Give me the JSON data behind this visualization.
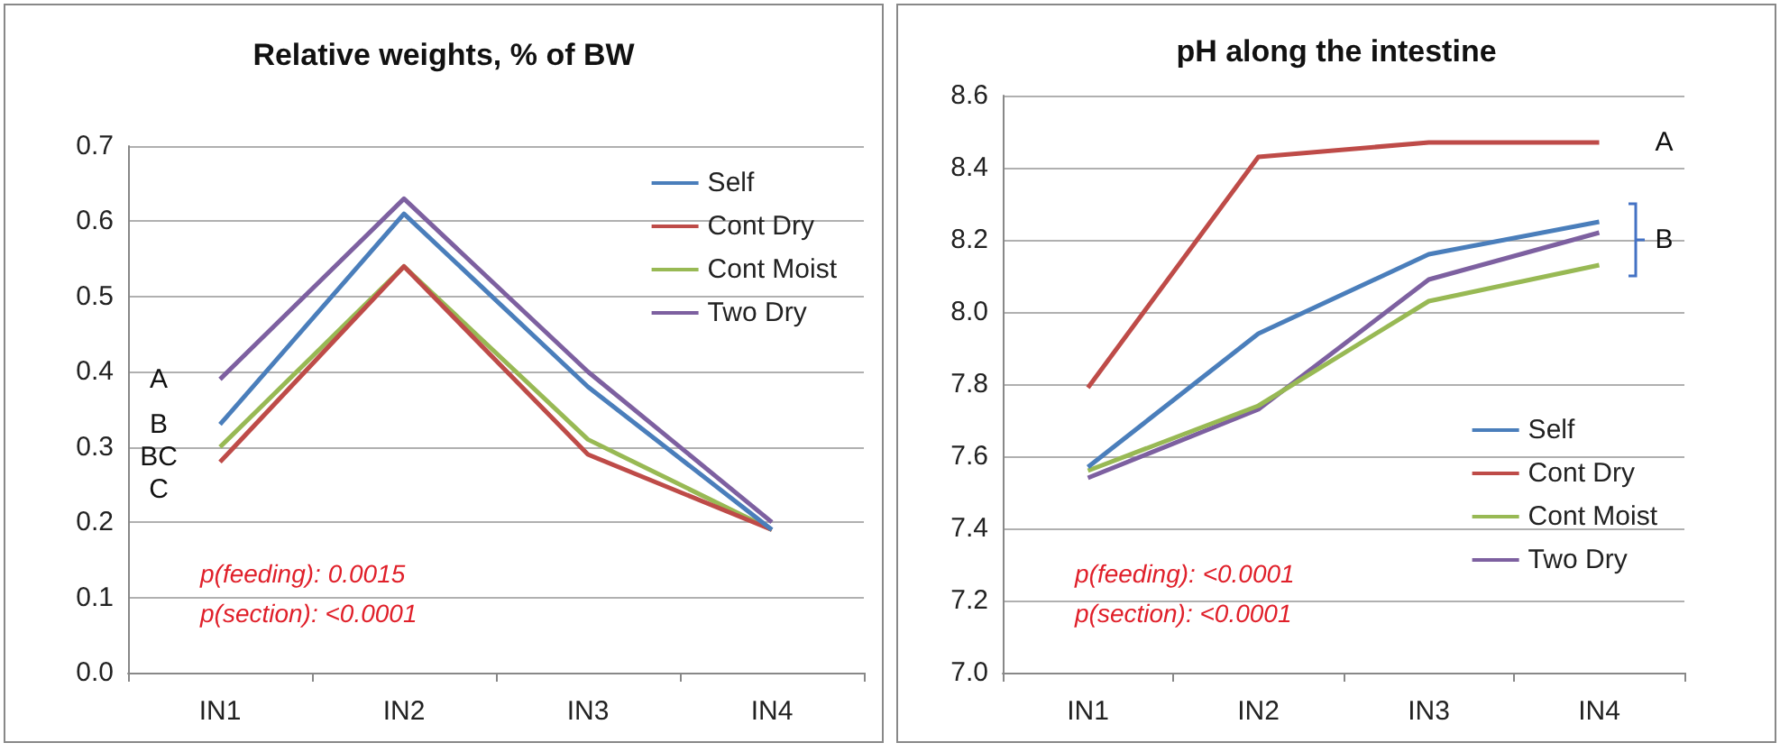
{
  "chart_data": [
    {
      "type": "line",
      "title": "Relative weights, % of BW",
      "categories": [
        "IN1",
        "IN2",
        "IN3",
        "IN4"
      ],
      "series": [
        {
          "name": "Self",
          "color": "#4a7ebb",
          "values": [
            0.33,
            0.61,
            0.38,
            0.19
          ]
        },
        {
          "name": "Cont Dry",
          "color": "#be4b48",
          "values": [
            0.28,
            0.54,
            0.29,
            0.19
          ]
        },
        {
          "name": "Cont Moist",
          "color": "#98b954",
          "values": [
            0.3,
            0.54,
            0.31,
            0.19
          ]
        },
        {
          "name": "Two Dry",
          "color": "#7d60a0",
          "values": [
            0.39,
            0.63,
            0.4,
            0.2
          ]
        }
      ],
      "ylim": [
        0,
        0.7
      ],
      "yticks": [
        {
          "value": 0,
          "label": "0.0"
        },
        0.1,
        0.2,
        0.3,
        0.4,
        0.5,
        0.6,
        0.7
      ],
      "grid": "y",
      "legend": "top right",
      "marker": "none",
      "line_style": "solid",
      "annotations": [
        {
          "text": "A",
          "x": "IN1",
          "y": 0.39
        },
        {
          "text": "B",
          "x": "IN1",
          "y": 0.33
        },
        {
          "text": "BC",
          "x": "IN1",
          "y": 0.3
        },
        {
          "text": "C",
          "x": "IN1",
          "y": 0.28
        },
        "p(feeding): 0.0015",
        "p(section): <0.0001"
      ]
    },
    {
      "type": "line",
      "title": "pH along the intestine",
      "categories": [
        "IN1",
        "IN2",
        "IN3",
        "IN4"
      ],
      "series": [
        {
          "name": "Self",
          "color": "#4a7ebb",
          "values": [
            7.57,
            7.94,
            8.16,
            8.25
          ]
        },
        {
          "name": "Cont Dry",
          "color": "#be4b48",
          "values": [
            7.79,
            8.43,
            8.47,
            8.47
          ]
        },
        {
          "name": "Cont Moist",
          "color": "#98b954",
          "values": [
            7.56,
            7.74,
            8.03,
            8.13
          ]
        },
        {
          "name": "Two Dry",
          "color": "#7d60a0",
          "values": [
            7.54,
            7.73,
            8.09,
            8.22
          ]
        }
      ],
      "ylim": [
        7.0,
        8.6
      ],
      "yticks": [
        {
          "value": 7,
          "label": "7.0"
        },
        7.2,
        7.4,
        7.6,
        7.8,
        {
          "value": 8,
          "label": "8.0"
        },
        8.2,
        8.4,
        8.6
      ],
      "grid": "y",
      "legend": "bottom right",
      "marker": "none",
      "line_style": "solid",
      "annotations": [
        {
          "text": "A",
          "x": "IN4",
          "y": 8.47
        },
        {
          "text": "B",
          "x": "IN4",
          "y": 8.2
        },
        "p(feeding): <0.0001",
        "p(section): <0.0001"
      ]
    }
  ]
}
